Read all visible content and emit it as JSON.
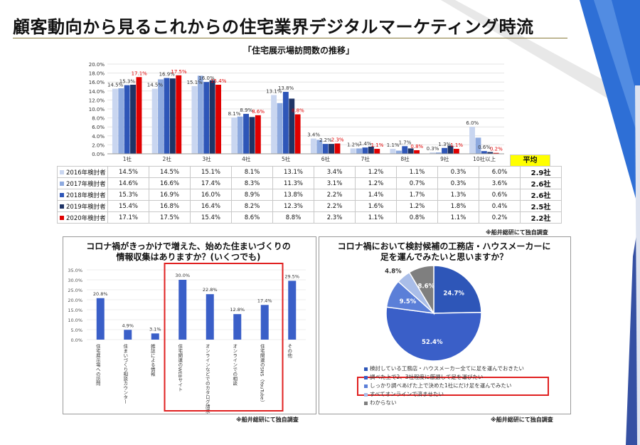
{
  "page": {
    "title": "顧客動向から見るこれからの住宅業界デジタルマーケティング時流",
    "colors": {
      "accent_blue": "#2e56c6",
      "highlight_red": "#e02020",
      "avg_yellow": "#ffff00"
    }
  },
  "chart_data": [
    {
      "type": "bar",
      "title": "「住宅展示場訪問数の推移」",
      "categories": [
        "1社",
        "2社",
        "3社",
        "4社",
        "5社",
        "6社",
        "7社",
        "8社",
        "9社",
        "10社以上"
      ],
      "ylim": [
        0,
        20
      ],
      "yticks": [
        "0.0%",
        "2.0%",
        "4.0%",
        "6.0%",
        "8.0%",
        "10.0%",
        "12.0%",
        "14.0%",
        "16.0%",
        "18.0%",
        "20.0%"
      ],
      "series": [
        {
          "name": "2016年検討者",
          "color": "#c9d6f0",
          "values": [
            14.5,
            14.5,
            15.1,
            8.1,
            13.1,
            3.4,
            1.2,
            1.1,
            0.3,
            6.0
          ]
        },
        {
          "name": "2017年検討者",
          "color": "#8eaadf",
          "values": [
            14.6,
            16.6,
            17.4,
            8.3,
            11.3,
            3.1,
            1.2,
            0.7,
            0.3,
            3.6
          ]
        },
        {
          "name": "2018年検討者",
          "color": "#2e56b8",
          "values": [
            15.3,
            16.9,
            16.0,
            8.9,
            13.8,
            2.2,
            1.4,
            1.7,
            1.3,
            0.6
          ]
        },
        {
          "name": "2019年検討者",
          "color": "#1f3466",
          "values": [
            15.4,
            16.8,
            16.4,
            8.2,
            12.3,
            2.2,
            1.6,
            1.2,
            1.8,
            0.4
          ]
        },
        {
          "name": "2020年検討者",
          "color": "#e00000",
          "values": [
            17.1,
            17.5,
            15.4,
            8.6,
            8.8,
            2.3,
            1.1,
            0.8,
            1.1,
            0.2
          ]
        }
      ],
      "table_values": [
        [
          "14.5%",
          "14.5%",
          "15.1%",
          "8.1%",
          "13.1%",
          "3.4%",
          "1.2%",
          "1.1%",
          "0.3%",
          "6.0%"
        ],
        [
          "14.6%",
          "16.6%",
          "17.4%",
          "8.3%",
          "11.3%",
          "3.1%",
          "1.2%",
          "0.7%",
          "0.3%",
          "3.6%"
        ],
        [
          "15.3%",
          "16.9%",
          "16.0%",
          "8.9%",
          "13.8%",
          "2.2%",
          "1.4%",
          "1.7%",
          "1.3%",
          "0.6%"
        ],
        [
          "15.4%",
          "16.8%",
          "16.4%",
          "8.2%",
          "12.3%",
          "2.2%",
          "1.6%",
          "1.2%",
          "1.8%",
          "0.4%"
        ],
        [
          "17.1%",
          "17.5%",
          "15.4%",
          "8.6%",
          "8.8%",
          "2.3%",
          "1.1%",
          "0.8%",
          "1.1%",
          "0.2%"
        ]
      ],
      "data_labels": [
        {
          "cat": 0,
          "labels": [
            {
              "s": 0,
              "text": "14.5%"
            },
            {
              "s": 2,
              "text": "15.3%"
            },
            {
              "s": 4,
              "text": "17.1%"
            }
          ]
        },
        {
          "cat": 1,
          "labels": [
            {
              "s": 0,
              "text": "14.5%"
            },
            {
              "s": 2,
              "text": "16.9%"
            },
            {
              "s": 4,
              "text": "17.5%"
            }
          ]
        },
        {
          "cat": 2,
          "labels": [
            {
              "s": 0,
              "text": "15.1%"
            },
            {
              "s": 2,
              "text": "16.0%"
            },
            {
              "s": 4,
              "text": "15.4%"
            }
          ]
        },
        {
          "cat": 3,
          "labels": [
            {
              "s": 0,
              "text": "8.1%"
            },
            {
              "s": 2,
              "text": "8.9%"
            },
            {
              "s": 4,
              "text": "8.6%"
            }
          ]
        },
        {
          "cat": 4,
          "labels": [
            {
              "s": 0,
              "text": "13.1%"
            },
            {
              "s": 2,
              "text": "13.8%"
            },
            {
              "s": 4,
              "text": "8.8%"
            }
          ]
        },
        {
          "cat": 5,
          "labels": [
            {
              "s": 0,
              "text": "3.4%"
            },
            {
              "s": 2,
              "text": "2.2%"
            },
            {
              "s": 4,
              "text": "2.3%"
            }
          ]
        },
        {
          "cat": 6,
          "labels": [
            {
              "s": 0,
              "text": "1.2%"
            },
            {
              "s": 2,
              "text": "1.4%"
            },
            {
              "s": 4,
              "text": "1.1%"
            }
          ]
        },
        {
          "cat": 7,
          "labels": [
            {
              "s": 0,
              "text": "1.1%"
            },
            {
              "s": 2,
              "text": "1.7%"
            },
            {
              "s": 4,
              "text": "0.8%"
            }
          ]
        },
        {
          "cat": 8,
          "labels": [
            {
              "s": 0,
              "text": "0.3%"
            },
            {
              "s": 2,
              "text": "1.3%"
            },
            {
              "s": 4,
              "text": "1.1%"
            }
          ]
        },
        {
          "cat": 9,
          "labels": [
            {
              "s": 0,
              "text": "6.0%"
            },
            {
              "s": 2,
              "text": "0.6%"
            },
            {
              "s": 4,
              "text": "0.2%"
            }
          ]
        }
      ],
      "avg_header": "平均",
      "averages": [
        "2.9社",
        "2.6社",
        "2.6社",
        "2.5社",
        "2.2社"
      ]
    },
    {
      "type": "bar",
      "title": "コロナ禍がきっかけで増えた、始めた住まいづくりの情報収集はありますか？(いくつでも)",
      "title_lines": [
        "コロナ禍がきっかけで増えた、始めた住まいづくりの",
        "情報収集はありますか？(いくつでも)"
      ],
      "categories": [
        "住宅展示場への訪問",
        "住まいづくり相談カウンター",
        "雑誌による情報",
        "住宅関連のWEBサイト",
        "オンラインなどでのカタログ請求",
        "オンラインでの相談",
        "住宅関連のSNS（YouTube・Instagram等）",
        "その他"
      ],
      "category_labels": [
        "住宅展示場への訪問",
        "住まいづくり相談カウンター",
        "雑誌による情報",
        "住宅関連のWEBサイト",
        "オンラインなどでのカタログ請求",
        "オンラインでの相談",
        "住宅関連のSNS（YouTube）",
        "その他"
      ],
      "values": [
        20.8,
        4.9,
        3.1,
        30.0,
        22.8,
        12.8,
        17.4,
        29.5
      ],
      "value_labels": [
        "20.8%",
        "4.9%",
        "3.1%",
        "30.0%",
        "22.8%",
        "12.8%",
        "17.4%",
        "29.5%"
      ],
      "ylim": [
        0,
        35
      ],
      "yticks": [
        "0.0%",
        "5.0%",
        "10.0%",
        "15.0%",
        "20.0%",
        "25.0%",
        "30.0%",
        "35.0%"
      ],
      "color": "#3a5fc8",
      "highlight_range": [
        3,
        6
      ]
    },
    {
      "type": "pie",
      "title": "コロナ禍において検討候補の工務店・ハウスメーカーに足を運んでみたいと思いますか？",
      "title_lines": [
        "コロナ禍において検討候補の工務店・ハウスメーカーに",
        "足を運んでみたいと思いますか？"
      ],
      "slices": [
        {
          "name": "検討している工務店・ハウスメーカー全てに足を運んでおきたい",
          "value": 24.7,
          "label": "24.7%",
          "color": "#2e56b8"
        },
        {
          "name": "調べた上で2、3社程度に厳選して足を運びたい",
          "value": 52.4,
          "label": "52.4%",
          "color": "#3a5fc8"
        },
        {
          "name": "しっかり調べあげた上で決めた1社にだけ足を運んでみたい",
          "value": 9.5,
          "label": "9.5%",
          "color": "#5b7fd8"
        },
        {
          "name": "すべてオンラインで済ませたい",
          "value": 4.8,
          "label": "4.8%",
          "color": "#a9bde8"
        },
        {
          "name": "わからない",
          "value": 8.6,
          "label": "8.6%",
          "color": "#7f7f7f"
        }
      ],
      "legend": [
        {
          "text": "検討している工務店・ハウスメーカー全てに足を運んでおきたい",
          "color": "#2e56b8"
        },
        {
          "text": "調べた上で2、3社程度に厳選して足を運びたい",
          "color": "#3a5fc8"
        },
        {
          "text": "しっかり調べあげた上で決めた1社にだけ足を運んでみたい",
          "color": "#5b7fd8"
        },
        {
          "text": "すべてオンラインで済ませたい",
          "color": "#a9bde8"
        },
        {
          "text": "わからない",
          "color": "#7f7f7f"
        }
      ]
    }
  ],
  "notes": {
    "source": "※船井総研にて独自調査"
  }
}
